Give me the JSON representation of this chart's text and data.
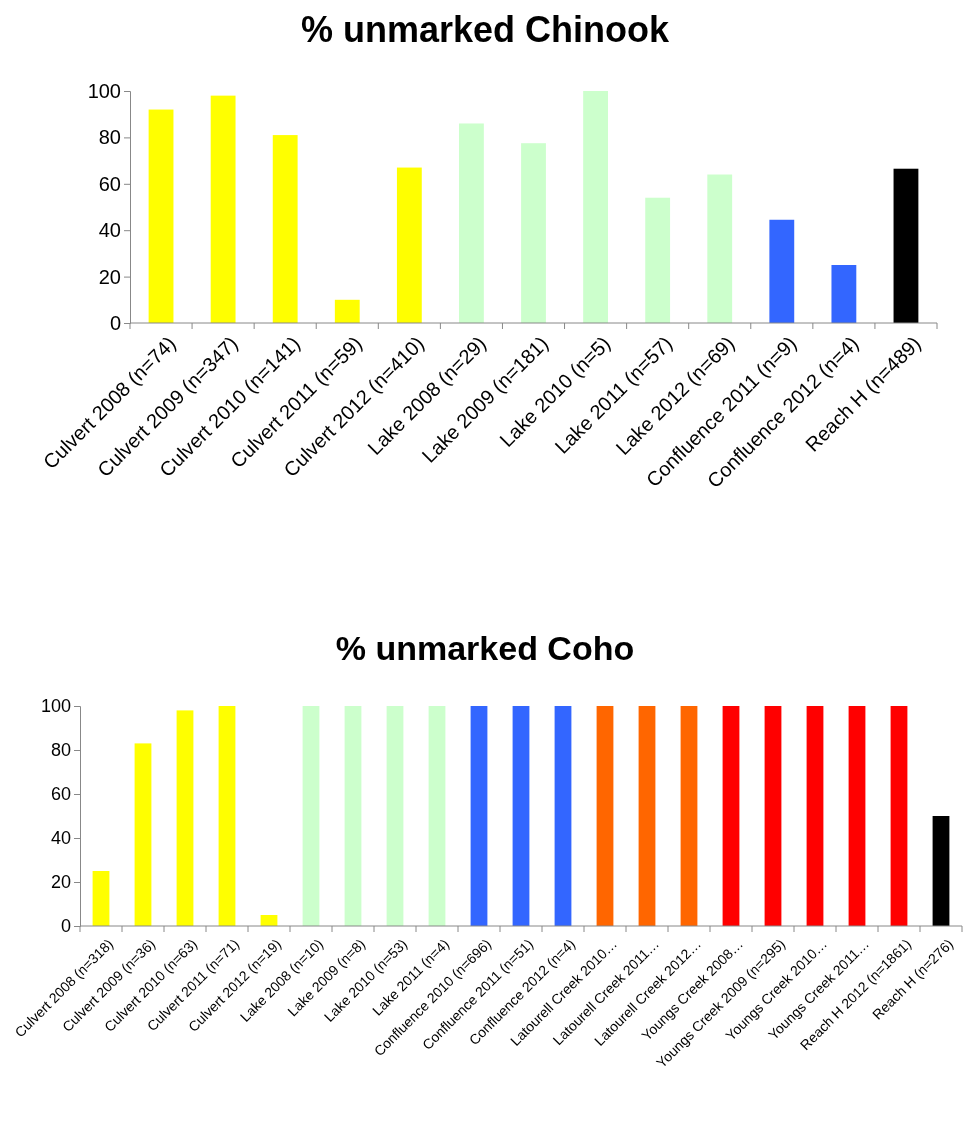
{
  "chart_data": [
    {
      "type": "bar",
      "title": "% unmarked Chinook",
      "categories": [
        "Culvert 2008 (n=74)",
        "Culvert 2009 (n=347)",
        "Culvert 2010 (n=141)",
        "Culvert 2011 (n=59)",
        "Culvert 2012 (n=410)",
        "Lake 2008 (n=29)",
        "Lake 2009 (n=181)",
        "Lake 2010 (n=5)",
        "Lake 2011 (n=57)",
        "Lake 2012 (n=69)",
        "Confluence 2011 (n=9)",
        "Confluence 2012 (n=4)",
        "Reach H  (n=489)"
      ],
      "values": [
        92,
        98,
        81,
        10,
        67,
        86,
        77.5,
        100,
        54,
        64,
        44.5,
        25,
        66.5
      ],
      "colors": [
        "#ffff00",
        "#ffff00",
        "#ffff00",
        "#ffff00",
        "#ffff00",
        "#ccffcc",
        "#ccffcc",
        "#ccffcc",
        "#ccffcc",
        "#ccffcc",
        "#3366ff",
        "#3366ff",
        "#000000"
      ],
      "ylim": [
        0,
        100
      ],
      "yticks": [
        0,
        20,
        40,
        60,
        80,
        100
      ],
      "grid": false
    },
    {
      "type": "bar",
      "title": "% unmarked Coho",
      "categories": [
        "Culvert 2008 (n=318)",
        "Culvert 2009 (n=36)",
        "Culvert 2010 (n=63)",
        "Culvert 2011 (n=71)",
        "Culvert 2012 (n=19)",
        "Lake 2008 (n=10)",
        "Lake 2009 (n=8)",
        "Lake 2010 (n=53)",
        "Lake 2011 (n=4)",
        "Confluence 2010 (n=696)",
        "Confluence 2011 (n=51)",
        "Confluence 2012 (n=4)",
        "Latourell Creek 2010…",
        "Latourell Creek 2011…",
        "Latourell Creek 2012…",
        "Youngs Creek 2008…",
        "Youngs Creek 2009 (n=295)",
        "Youngs Creek 2010…",
        "Youngs Creek 2011…",
        "Reach H 2012 (n=1861)",
        "Reach H  (n=276)"
      ],
      "values": [
        25,
        83,
        98,
        100,
        5,
        100,
        100,
        100,
        100,
        100,
        100,
        100,
        100,
        100,
        100,
        100,
        100,
        100,
        100,
        100,
        50
      ],
      "colors": [
        "#ffff00",
        "#ffff00",
        "#ffff00",
        "#ffff00",
        "#ffff00",
        "#ccffcc",
        "#ccffcc",
        "#ccffcc",
        "#ccffcc",
        "#3366ff",
        "#3366ff",
        "#3366ff",
        "#ff6600",
        "#ff6600",
        "#ff6600",
        "#ff0000",
        "#ff0000",
        "#ff0000",
        "#ff0000",
        "#ff0000",
        "#000000"
      ],
      "ylim": [
        0,
        100
      ],
      "yticks": [
        0,
        20,
        40,
        60,
        80,
        100
      ],
      "grid": false
    }
  ]
}
